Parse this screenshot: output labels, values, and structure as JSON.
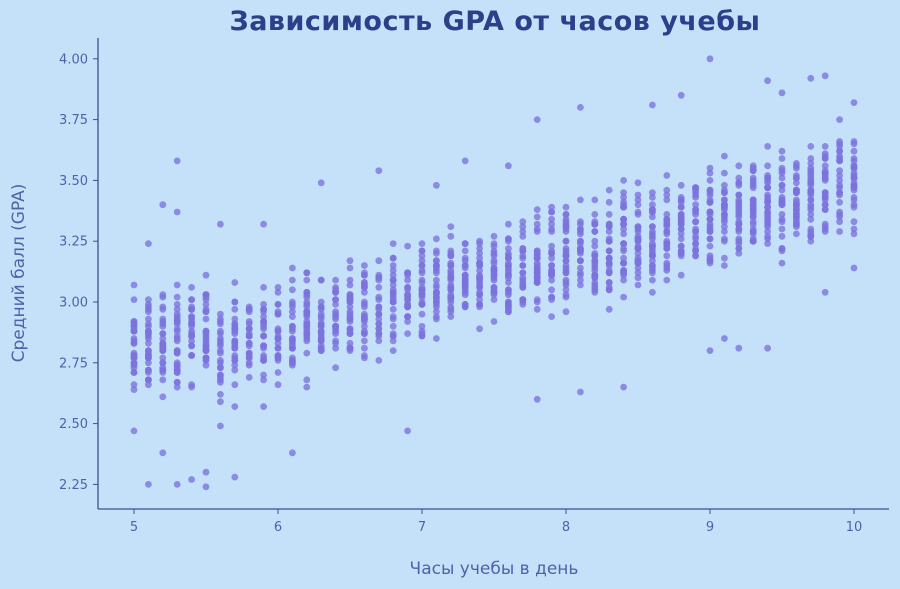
{
  "chart_data": {
    "type": "scatter",
    "title": "Зависимость GPA от часов учебы",
    "xlabel": "Часы учебы в день",
    "ylabel": "Средний балл (GPA)",
    "xlim": [
      4.78,
      10.25
    ],
    "ylim": [
      2.15,
      4.09
    ],
    "xticks": [
      5,
      6,
      7,
      8,
      9,
      10
    ],
    "xtick_labels": [
      "5",
      "6",
      "7",
      "8",
      "9",
      "10"
    ],
    "yticks": [
      2.25,
      2.5,
      2.75,
      3.0,
      3.25,
      3.5,
      3.75,
      4.0
    ],
    "ytick_labels": [
      "2.25",
      "2.50",
      "2.75",
      "3.00",
      "3.25",
      "3.50",
      "3.75",
      "4.00"
    ],
    "grid": false,
    "legend": "none",
    "colors": {
      "points": "#7b72dd",
      "title": "#2b3f8a",
      "axis": "#3d4f8f",
      "labels": "#5161a8",
      "background": "#c5e1fa"
    },
    "x_step": 0.1,
    "sample_points": [
      [
        5.0,
        3.07
      ],
      [
        5.0,
        2.47
      ],
      [
        5.1,
        3.24
      ],
      [
        5.1,
        2.25
      ],
      [
        5.2,
        3.4
      ],
      [
        5.2,
        2.38
      ],
      [
        5.3,
        3.58
      ],
      [
        5.3,
        3.37
      ],
      [
        5.3,
        2.25
      ],
      [
        5.4,
        2.27
      ],
      [
        5.5,
        2.24
      ],
      [
        5.5,
        2.3
      ],
      [
        5.6,
        3.32
      ],
      [
        5.7,
        2.28
      ],
      [
        5.9,
        3.32
      ],
      [
        6.1,
        2.38
      ],
      [
        6.3,
        3.49
      ],
      [
        6.7,
        3.54
      ],
      [
        6.9,
        2.47
      ],
      [
        7.1,
        3.48
      ],
      [
        7.3,
        3.58
      ],
      [
        7.6,
        3.56
      ],
      [
        7.8,
        3.75
      ],
      [
        7.8,
        2.6
      ],
      [
        8.1,
        3.8
      ],
      [
        8.1,
        2.63
      ],
      [
        8.4,
        2.65
      ],
      [
        8.6,
        3.81
      ],
      [
        8.8,
        3.85
      ],
      [
        9.0,
        4.0
      ],
      [
        9.0,
        2.8
      ],
      [
        9.1,
        2.85
      ],
      [
        9.2,
        2.81
      ],
      [
        9.4,
        3.91
      ],
      [
        9.4,
        2.81
      ],
      [
        9.5,
        3.86
      ],
      [
        9.7,
        3.92
      ],
      [
        9.8,
        3.93
      ],
      [
        9.8,
        3.04
      ],
      [
        10.0,
        3.82
      ],
      [
        10.0,
        3.14
      ]
    ],
    "trend": {
      "intercept_at_5": 2.72,
      "slope_per_hour": 0.155
    }
  }
}
